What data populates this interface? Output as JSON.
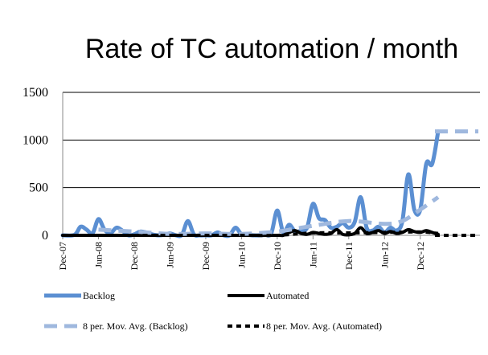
{
  "chart_data": {
    "type": "line",
    "title": "Rate of TC automation / month",
    "xlabel": "",
    "ylabel": "",
    "ylim": [
      0,
      1500
    ],
    "yticks": [
      0,
      500,
      1000,
      1500
    ],
    "xticks": [
      "Dec-07",
      "Jun-08",
      "Dec-08",
      "Jun-09",
      "Dec-09",
      "Jun-10",
      "Dec-10",
      "Jun-11",
      "Dec-11",
      "Jun-12",
      "Dec-12"
    ],
    "grid": "horizontal",
    "legend_position": "bottom",
    "series": [
      {
        "name": "Backlog",
        "color": "#5b8fd2",
        "style": "solid",
        "points": [
          [
            "Dec-07",
            0
          ],
          [
            "Feb-08",
            5
          ],
          [
            "Mar-08",
            90
          ],
          [
            "Apr-08",
            60
          ],
          [
            "May-08",
            20
          ],
          [
            "Jun-08",
            170
          ],
          [
            "Jul-08",
            60
          ],
          [
            "Aug-08",
            20
          ],
          [
            "Sep-08",
            80
          ],
          [
            "Oct-08",
            50
          ],
          [
            "Nov-08",
            0
          ],
          [
            "Dec-08",
            10
          ],
          [
            "Jan-09",
            40
          ],
          [
            "Feb-09",
            30
          ],
          [
            "Mar-09",
            10
          ],
          [
            "Apr-09",
            0
          ],
          [
            "May-09",
            5
          ],
          [
            "Jun-09",
            20
          ],
          [
            "Jul-09",
            0
          ],
          [
            "Aug-09",
            5
          ],
          [
            "Sep-09",
            150
          ],
          [
            "Oct-09",
            10
          ],
          [
            "Nov-09",
            0
          ],
          [
            "Dec-09",
            0
          ],
          [
            "Jan-10",
            0
          ],
          [
            "Feb-10",
            30
          ],
          [
            "Mar-10",
            0
          ],
          [
            "Apr-10",
            0
          ],
          [
            "May-10",
            80
          ],
          [
            "Jun-10",
            10
          ],
          [
            "Jul-10",
            5
          ],
          [
            "Aug-10",
            0
          ],
          [
            "Sep-10",
            0
          ],
          [
            "Oct-10",
            5
          ],
          [
            "Nov-10",
            20
          ],
          [
            "Dec-10",
            260
          ],
          [
            "Jan-11",
            30
          ],
          [
            "Feb-11",
            110
          ],
          [
            "Mar-11",
            40
          ],
          [
            "Apr-11",
            50
          ],
          [
            "May-11",
            80
          ],
          [
            "Jun-11",
            330
          ],
          [
            "Jul-11",
            180
          ],
          [
            "Aug-11",
            160
          ],
          [
            "Sep-11",
            80
          ],
          [
            "Oct-11",
            90
          ],
          [
            "Nov-11",
            130
          ],
          [
            "Dec-11",
            80
          ],
          [
            "Jan-12",
            140
          ],
          [
            "Feb-12",
            400
          ],
          [
            "Mar-12",
            80
          ],
          [
            "Apr-12",
            50
          ],
          [
            "May-12",
            90
          ],
          [
            "Jun-12",
            30
          ],
          [
            "Jul-12",
            80
          ],
          [
            "Aug-12",
            50
          ],
          [
            "Sep-12",
            150
          ],
          [
            "Oct-12",
            640
          ],
          [
            "Nov-12",
            270
          ],
          [
            "Dec-12",
            270
          ],
          [
            "Jan-13",
            750
          ],
          [
            "Feb-13",
            750
          ],
          [
            "Mar-13",
            1090
          ]
        ]
      },
      {
        "name": "Automated",
        "color": "#000000",
        "style": "solid",
        "points": [
          [
            "Dec-07",
            0
          ],
          [
            "Jun-08",
            0
          ],
          [
            "Dec-08",
            0
          ],
          [
            "Jun-09",
            0
          ],
          [
            "Dec-09",
            0
          ],
          [
            "Jun-10",
            0
          ],
          [
            "Dec-10",
            0
          ],
          [
            "Jan-11",
            0
          ],
          [
            "Feb-11",
            30
          ],
          [
            "Mar-11",
            50
          ],
          [
            "Apr-11",
            20
          ],
          [
            "May-11",
            10
          ],
          [
            "Jun-11",
            30
          ],
          [
            "Jul-11",
            20
          ],
          [
            "Aug-11",
            10
          ],
          [
            "Sep-11",
            20
          ],
          [
            "Oct-11",
            60
          ],
          [
            "Nov-11",
            10
          ],
          [
            "Dec-11",
            5
          ],
          [
            "Jan-12",
            20
          ],
          [
            "Feb-12",
            80
          ],
          [
            "Mar-12",
            20
          ],
          [
            "Apr-12",
            30
          ],
          [
            "May-12",
            50
          ],
          [
            "Jun-12",
            20
          ],
          [
            "Jul-12",
            40
          ],
          [
            "Aug-12",
            20
          ],
          [
            "Sep-12",
            30
          ],
          [
            "Oct-12",
            60
          ],
          [
            "Nov-12",
            40
          ],
          [
            "Dec-12",
            30
          ],
          [
            "Jan-13",
            50
          ],
          [
            "Feb-13",
            30
          ],
          [
            "Mar-13",
            10
          ]
        ]
      },
      {
        "name": "8 per. Mov. Avg. (Backlog)",
        "color": "#9fb8de",
        "style": "dashed",
        "points": [
          [
            "Jun-08",
            60
          ],
          [
            "Dec-08",
            40
          ],
          [
            "Jun-09",
            15
          ],
          [
            "Dec-09",
            20
          ],
          [
            "Jun-10",
            15
          ],
          [
            "Dec-10",
            40
          ],
          [
            "Jun-11",
            100
          ],
          [
            "Dec-11",
            150
          ],
          [
            "Jun-12",
            120
          ],
          [
            "Sep-12",
            150
          ],
          [
            "Dec-12",
            270
          ],
          [
            "Mar-13",
            400
          ]
        ],
        "forecast_value": 1090
      },
      {
        "name": "8 per. Mov. Avg. (Automated)",
        "color": "#000000",
        "style": "dashed",
        "points": [
          [
            "Jun-08",
            0
          ],
          [
            "Dec-08",
            0
          ],
          [
            "Jun-09",
            0
          ],
          [
            "Dec-09",
            0
          ],
          [
            "Jun-10",
            0
          ],
          [
            "Dec-10",
            0
          ],
          [
            "Jun-11",
            25
          ],
          [
            "Dec-11",
            25
          ],
          [
            "Jun-12",
            30
          ],
          [
            "Dec-12",
            35
          ],
          [
            "Mar-13",
            20
          ]
        ],
        "forecast_value": 0
      }
    ]
  }
}
